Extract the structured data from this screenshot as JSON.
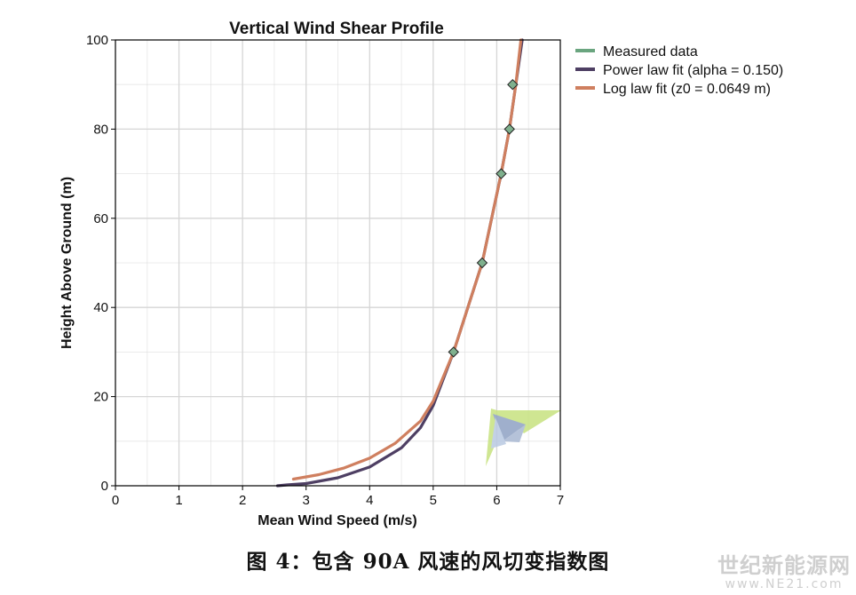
{
  "chart_data": {
    "type": "line",
    "title": "Vertical Wind Shear Profile",
    "xlabel": "Mean Wind Speed (m/s)",
    "ylabel": "Height Above Ground (m)",
    "xlim": [
      0,
      7
    ],
    "ylim": [
      0,
      100
    ],
    "xticks": [
      0,
      1,
      2,
      3,
      4,
      5,
      6,
      7
    ],
    "yticks": [
      0,
      20,
      40,
      60,
      80,
      100
    ],
    "grid": true,
    "legend_position": "right",
    "series": [
      {
        "name": "Measured data",
        "kind": "markers",
        "color": "#6aa57f",
        "marker_fill": "#7fb08d",
        "points": [
          {
            "x": 5.32,
            "y": 30
          },
          {
            "x": 5.77,
            "y": 50
          },
          {
            "x": 6.07,
            "y": 70
          },
          {
            "x": 6.2,
            "y": 80
          },
          {
            "x": 6.25,
            "y": 90
          }
        ]
      },
      {
        "name": "Power law fit (alpha = 0.150)",
        "kind": "line",
        "color": "#4e3f63",
        "points": [
          {
            "x": 2.55,
            "y": 0
          },
          {
            "x": 2.7,
            "y": 0.2
          },
          {
            "x": 3.0,
            "y": 0.5
          },
          {
            "x": 3.5,
            "y": 1.8
          },
          {
            "x": 4.0,
            "y": 4.2
          },
          {
            "x": 4.5,
            "y": 8.5
          },
          {
            "x": 4.8,
            "y": 13
          },
          {
            "x": 5.0,
            "y": 18
          },
          {
            "x": 5.32,
            "y": 30
          },
          {
            "x": 5.77,
            "y": 50
          },
          {
            "x": 6.07,
            "y": 70
          },
          {
            "x": 6.2,
            "y": 80
          },
          {
            "x": 6.3,
            "y": 90
          },
          {
            "x": 6.4,
            "y": 100
          }
        ]
      },
      {
        "name": "Log law fit (z0 = 0.0649 m)",
        "kind": "line",
        "color": "#cf7f5f",
        "points": [
          {
            "x": 2.8,
            "y": 1.5
          },
          {
            "x": 3.2,
            "y": 2.5
          },
          {
            "x": 3.6,
            "y": 4
          },
          {
            "x": 4.0,
            "y": 6.2
          },
          {
            "x": 4.4,
            "y": 9.5
          },
          {
            "x": 4.8,
            "y": 14.5
          },
          {
            "x": 5.0,
            "y": 19
          },
          {
            "x": 5.32,
            "y": 30
          },
          {
            "x": 5.77,
            "y": 50
          },
          {
            "x": 6.07,
            "y": 70
          },
          {
            "x": 6.2,
            "y": 80
          },
          {
            "x": 6.3,
            "y": 90
          },
          {
            "x": 6.38,
            "y": 100
          }
        ]
      }
    ]
  },
  "caption": "图 4：包含 90A 风速的风切变指数图",
  "watermark": {
    "line1": "世纪新能源网",
    "line2": "www.NE21.com"
  },
  "colors": {
    "grid": "#d6d6d6",
    "axis": "#000000",
    "logo_green": "#c7e27f",
    "logo_blue": "#8fa2c4"
  }
}
